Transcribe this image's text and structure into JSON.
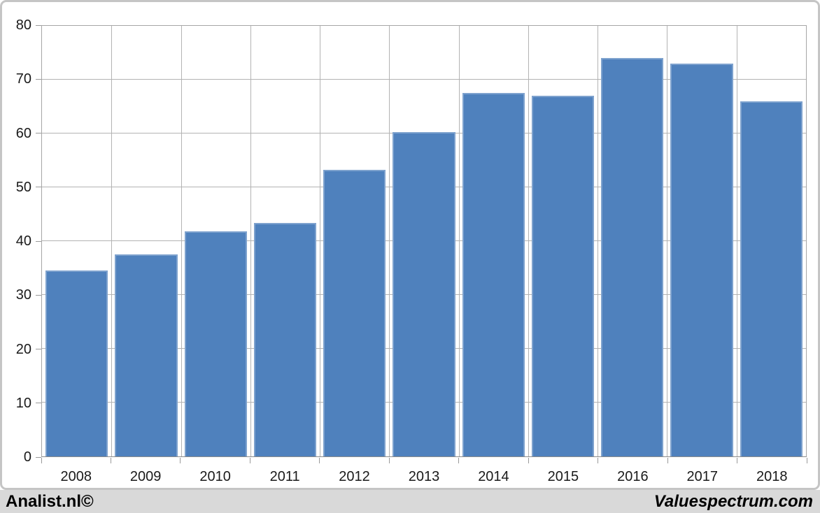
{
  "chart_data": {
    "type": "bar",
    "categories": [
      "2008",
      "2009",
      "2010",
      "2011",
      "2012",
      "2013",
      "2014",
      "2015",
      "2016",
      "2017",
      "2018"
    ],
    "values": [
      34.5,
      37.5,
      41.8,
      43.4,
      53.2,
      60.3,
      67.5,
      67,
      74,
      73,
      66
    ],
    "title": "",
    "xlabel": "",
    "ylabel": "",
    "ylim": [
      0,
      80
    ],
    "yticks": [
      0,
      10,
      20,
      30,
      40,
      50,
      60,
      70,
      80
    ],
    "grid": true,
    "legend": false,
    "bar_color": "#4f81bd",
    "bar_border_color": "#7ea2ce",
    "bar_gap_fraction": 0.1
  },
  "footer": {
    "left": "Analist.nl©",
    "right": "Valuespectrum.com",
    "background": "#d9d9d9"
  }
}
